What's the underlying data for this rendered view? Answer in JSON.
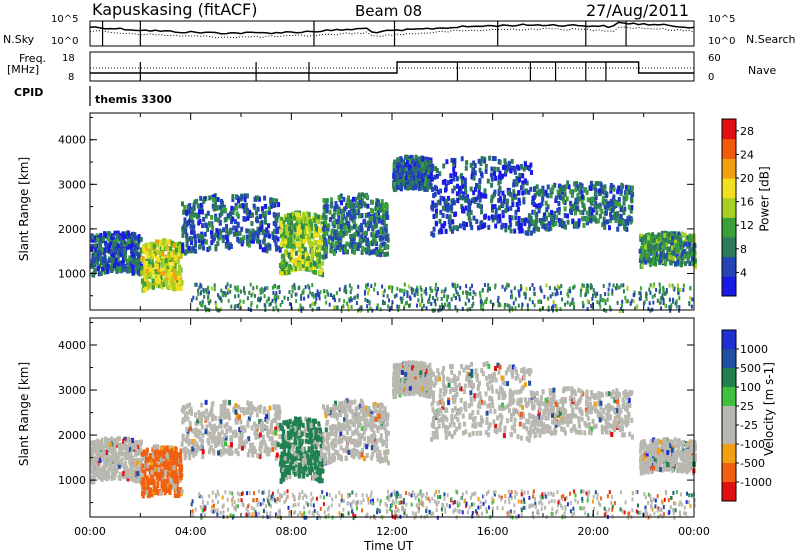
{
  "header": {
    "station": "Kapuskasing (fitACF)",
    "beam": "Beam 08",
    "date": "27/Aug/2011"
  },
  "strip_labels": {
    "nsky": "N.Sky",
    "freq_line1": "Freq.",
    "freq_line2": "[MHz]",
    "cpid": "CPID",
    "nsearch": "N.Search",
    "nave": "Nave",
    "nsky_tick_top": "10^5",
    "nsky_tick_bottom": "10^0",
    "freq_tick_top": "18",
    "freq_tick_bottom": "8",
    "nave_tick_top": "60",
    "nave_tick_bottom": "0",
    "cpid_text": "themis 3300"
  },
  "colors": {
    "power_scale": [
      "#1a1ae6",
      "#2446b4",
      "#2d7a5a",
      "#3aa03a",
      "#a8d020",
      "#f0e020",
      "#f0a010",
      "#f05a08",
      "#e01010"
    ],
    "velocity_scale": [
      "#2030d0",
      "#2050a0",
      "#208050",
      "#40c040",
      "#b8b8b0",
      "#b8b8b0",
      "#f0a010",
      "#f06010",
      "#e01010"
    ],
    "ground_scatter": "#b8b8b0"
  },
  "chart_data": [
    {
      "type": "heatmap",
      "panel": "power",
      "ylabel": "Slant Range [km]",
      "ylim": [
        180,
        4600
      ],
      "xlim": [
        0,
        24
      ],
      "yticks": [
        "1000",
        "2000",
        "3000",
        "4000"
      ],
      "colorbar_label": "Power [dB]",
      "colorbar_ticks": [
        "4",
        "8",
        "12",
        "16",
        "20",
        "24",
        "28"
      ],
      "colorbar_range": [
        0,
        30
      ],
      "regions": [
        {
          "t": [
            0.0,
            2.0
          ],
          "range": [
            1000,
            1900
          ],
          "value": 6
        },
        {
          "t": [
            2.0,
            3.6
          ],
          "range": [
            650,
            1700
          ],
          "value": 16
        },
        {
          "t": [
            3.6,
            7.5
          ],
          "range": [
            1500,
            2700
          ],
          "value": 6
        },
        {
          "t": [
            7.5,
            9.2
          ],
          "range": [
            1000,
            2300
          ],
          "value": 14
        },
        {
          "t": [
            9.2,
            11.8
          ],
          "range": [
            1400,
            2700
          ],
          "value": 8
        },
        {
          "t": [
            12.0,
            13.5
          ],
          "range": [
            2900,
            3600
          ],
          "value": 6
        },
        {
          "t": [
            13.5,
            17.5
          ],
          "range": [
            1900,
            3500
          ],
          "value": 5
        },
        {
          "t": [
            17.5,
            21.5
          ],
          "range": [
            2000,
            3000
          ],
          "value": 7
        },
        {
          "t": [
            21.8,
            24.0
          ],
          "range": [
            1200,
            1900
          ],
          "value": 10
        },
        {
          "t": [
            4.0,
            24.0
          ],
          "range": [
            200,
            800
          ],
          "value": 9
        }
      ]
    },
    {
      "type": "heatmap",
      "panel": "velocity",
      "ylabel": "Slant Range [km]",
      "xlabel": "Time UT",
      "ylim": [
        180,
        4600
      ],
      "xlim": [
        0,
        24
      ],
      "yticks": [
        "1000",
        "2000",
        "3000",
        "4000"
      ],
      "xticks": [
        "00:00",
        "04:00",
        "08:00",
        "12:00",
        "16:00",
        "20:00",
        "00:00"
      ],
      "colorbar_label": "Velocity [m s-1]",
      "colorbar_ticks": [
        "1000",
        "500",
        "100",
        "25",
        "-25",
        "-100",
        "-500",
        "-1000"
      ],
      "regions": [
        {
          "t": [
            0.0,
            2.0
          ],
          "range": [
            1000,
            1900
          ],
          "value": 0
        },
        {
          "t": [
            2.0,
            3.6
          ],
          "range": [
            650,
            1700
          ],
          "value": -150
        },
        {
          "t": [
            3.6,
            7.5
          ],
          "range": [
            1500,
            2700
          ],
          "value": 0
        },
        {
          "t": [
            7.5,
            9.2
          ],
          "range": [
            1000,
            2300
          ],
          "value": 120
        },
        {
          "t": [
            9.2,
            11.8
          ],
          "range": [
            1400,
            2700
          ],
          "value": 0
        },
        {
          "t": [
            12.0,
            13.5
          ],
          "range": [
            2900,
            3600
          ],
          "value": 0
        },
        {
          "t": [
            13.5,
            17.5
          ],
          "range": [
            1900,
            3500
          ],
          "value": 0
        },
        {
          "t": [
            17.5,
            21.5
          ],
          "range": [
            2000,
            3000
          ],
          "value": 0
        },
        {
          "t": [
            21.8,
            24.0
          ],
          "range": [
            1200,
            1900
          ],
          "value": 0
        },
        {
          "t": [
            4.0,
            24.0
          ],
          "range": [
            200,
            800
          ],
          "value": -60
        }
      ]
    }
  ]
}
